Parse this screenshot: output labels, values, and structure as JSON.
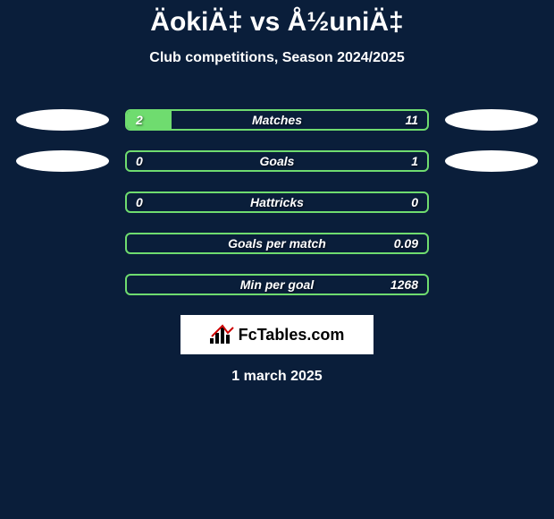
{
  "title": "ÄokiÄ‡ vs Å½uniÄ‡",
  "subtitle": "Club competitions, Season 2024/2025",
  "colors": {
    "background": "#0a1e3a",
    "bar_border": "#6fdc6f",
    "bar_fill": "#6fdc6f",
    "ellipse": "#ffffff",
    "text": "#ffffff"
  },
  "rows": [
    {
      "label": "Matches",
      "left": "2",
      "right": "11",
      "fill_pct": 15,
      "show_ellipses": true
    },
    {
      "label": "Goals",
      "left": "0",
      "right": "1",
      "fill_pct": 0,
      "show_ellipses": true
    },
    {
      "label": "Hattricks",
      "left": "0",
      "right": "0",
      "fill_pct": 0,
      "show_ellipses": false
    },
    {
      "label": "Goals per match",
      "left": "",
      "right": "0.09",
      "fill_pct": 0,
      "show_ellipses": false
    },
    {
      "label": "Min per goal",
      "left": "",
      "right": "1268",
      "fill_pct": 0,
      "show_ellipses": false
    }
  ],
  "logo_text": "FcTables.com",
  "date": "1 march 2025"
}
